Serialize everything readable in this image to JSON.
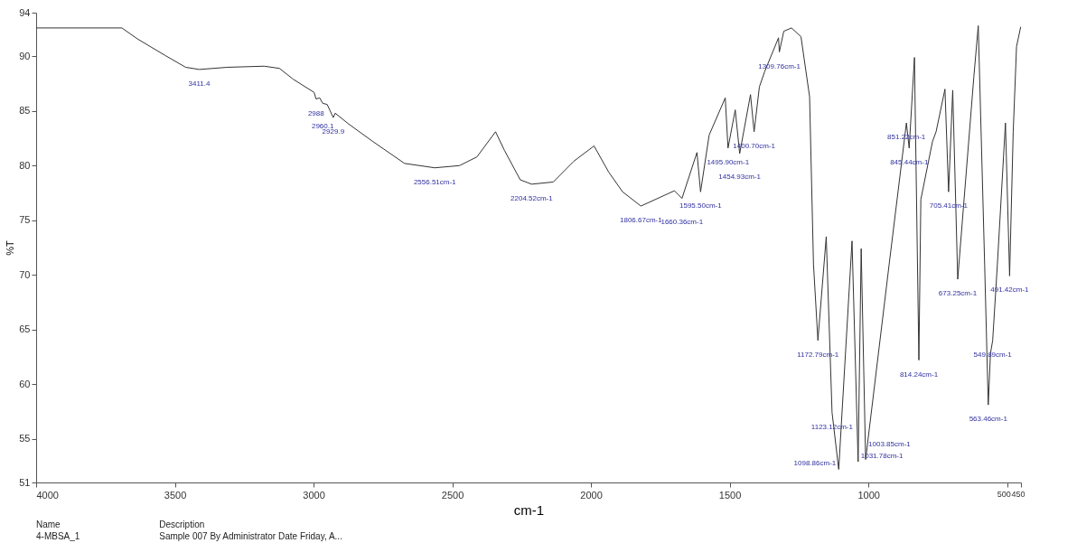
{
  "chart_data": {
    "type": "line",
    "xlabel": "cm-1",
    "ylabel": "%T",
    "xlim": [
      4000,
      450
    ],
    "xticks": [
      4000,
      3500,
      3000,
      2500,
      2000,
      1500,
      1000,
      500,
      450
    ],
    "ylim": [
      51,
      94
    ],
    "yticks": [
      51,
      55,
      60,
      65,
      70,
      75,
      80,
      85,
      90,
      94
    ],
    "grid": false,
    "series": [
      {
        "color": "#333333",
        "x": [
          4000,
          3691,
          3635,
          3536,
          3461,
          3412,
          3310,
          3178,
          3123,
          3073,
          2998,
          2991,
          2978,
          2967,
          2951,
          2929,
          2922,
          2873,
          2786,
          2672,
          2563,
          2474,
          2411,
          2344,
          2312,
          2255,
          2214,
          2136,
          2062,
          1989,
          1936,
          1886,
          1820,
          1699,
          1672,
          1618,
          1605,
          1574,
          1516,
          1506,
          1480,
          1464,
          1425,
          1412,
          1393,
          1374,
          1324,
          1321,
          1305,
          1277,
          1243,
          1212,
          1198,
          1182,
          1152,
          1131,
          1107,
          1059,
          1037,
          1026,
          1010,
          925,
          863,
          853,
          834,
          818,
          811,
          769,
          756,
          724,
          711,
          696,
          678,
          620,
          604,
          581,
          568,
          560,
          552,
          535,
          506,
          491,
          478,
          466,
          451
        ],
        "values": [
          92.6,
          92.6,
          91.6,
          90.1,
          89.0,
          88.8,
          89.0,
          89.1,
          88.9,
          87.9,
          86.7,
          86.1,
          86.2,
          85.7,
          85.6,
          84.4,
          84.8,
          83.8,
          82.2,
          80.2,
          79.8,
          80.0,
          80.8,
          83.1,
          81.4,
          78.7,
          78.3,
          78.5,
          80.4,
          81.8,
          79.4,
          77.6,
          76.3,
          77.7,
          77.0,
          81.2,
          77.6,
          82.8,
          86.2,
          81.6,
          85.1,
          81.1,
          86.5,
          83.1,
          87.2,
          88.6,
          91.7,
          90.4,
          92.3,
          92.6,
          91.8,
          86.3,
          71.0,
          64.0,
          73.5,
          57.4,
          52.2,
          73.1,
          52.9,
          72.4,
          53.1,
          71.0,
          83.9,
          81.6,
          89.9,
          62.2,
          76.9,
          82.2,
          83.1,
          87.0,
          77.6,
          86.9,
          69.6,
          88.1,
          92.8,
          71.0,
          58.1,
          62.8,
          64.0,
          71.0,
          83.9,
          69.9,
          83.1,
          90.9,
          92.7
        ]
      }
    ],
    "annotations": [
      {
        "text": "3411.4",
        "x": 3412,
        "y": 88.8
      },
      {
        "text": "2988",
        "x": 2991,
        "y": 86.1
      },
      {
        "text": "2960.1",
        "x": 2967,
        "y": 85.7
      },
      {
        "text": "2929.9",
        "x": 2929,
        "y": 84.4
      },
      {
        "text": "2556.51cm-1",
        "x": 2563,
        "y": 79.8
      },
      {
        "text": "2204.52cm-1",
        "x": 2214,
        "y": 78.3
      },
      {
        "text": "1806.67cm-1",
        "x": 1820,
        "y": 76.3
      },
      {
        "text": "1660.36cm-1",
        "x": 1672,
        "y": 77.0
      },
      {
        "text": "1595.50cm-1",
        "x": 1605,
        "y": 77.6
      },
      {
        "text": "1495.90cm-1",
        "x": 1506,
        "y": 81.6
      },
      {
        "text": "1454.93cm-1",
        "x": 1464,
        "y": 81.1
      },
      {
        "text": "1400.70cm-1",
        "x": 1412,
        "y": 83.1
      },
      {
        "text": "1309.76cm-1",
        "x": 1321,
        "y": 90.4
      },
      {
        "text": "1172.79cm-1",
        "x": 1182,
        "y": 64.0
      },
      {
        "text": "1123.12cm-1",
        "x": 1131,
        "y": 57.4
      },
      {
        "text": "1098.86cm-1",
        "x": 1107,
        "y": 52.2
      },
      {
        "text": "1031.78cm-1",
        "x": 1037,
        "y": 52.9
      },
      {
        "text": "1003.85cm-1",
        "x": 1010,
        "y": 53.1
      },
      {
        "text": "845.44cm-1",
        "x": 853,
        "y": 81.6
      },
      {
        "text": "851.22cm-1",
        "x": 863,
        "y": 83.9
      },
      {
        "text": "814.24cm-1",
        "x": 818,
        "y": 62.2
      },
      {
        "text": "705.41cm-1",
        "x": 711,
        "y": 77.6
      },
      {
        "text": "673.25cm-1",
        "x": 678,
        "y": 69.6
      },
      {
        "text": "563.46cm-1",
        "x": 568,
        "y": 58.1
      },
      {
        "text": "549.89cm-1",
        "x": 552,
        "y": 64.0
      },
      {
        "text": "491.42cm-1",
        "x": 491,
        "y": 69.9
      },
      "Name",
      "Description",
      "4-MBSA_1",
      "Sample 007 By Administrator Date Friday, A..."
    ]
  }
}
